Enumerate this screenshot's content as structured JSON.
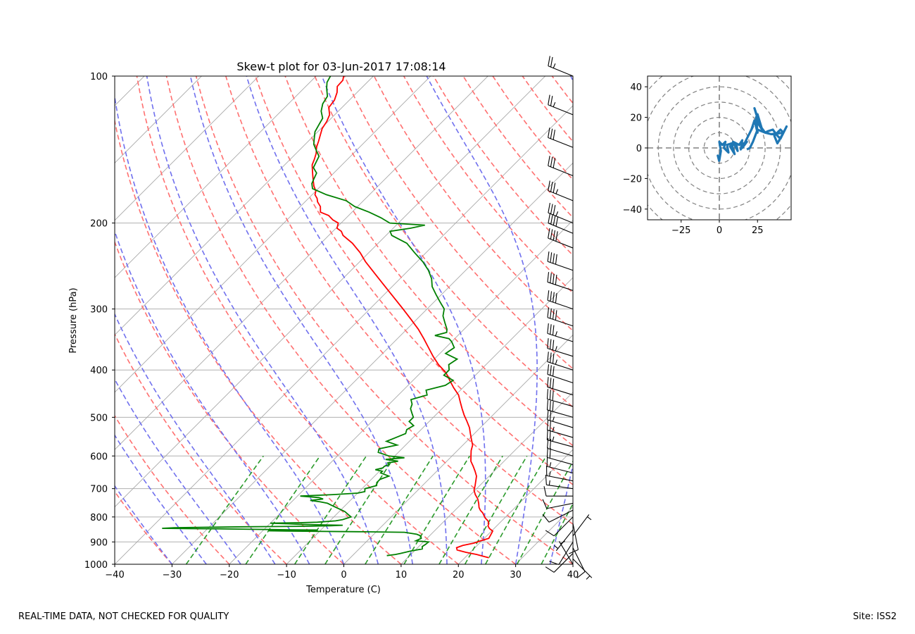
{
  "footer": {
    "left": "REAL-TIME DATA, NOT CHECKED FOR QUALITY",
    "right": "Site: ISS2"
  },
  "colors": {
    "temperature": "#ff0000",
    "dewpoint": "#008000",
    "dry_adiabats": "#ff7070",
    "moist_adiabats": "#7070ee",
    "mixing_ratio": "#2a9a2a",
    "isotherms": "#a8a8a8",
    "hodograph": "#1f77b4"
  },
  "chart_data": [
    {
      "type": "line",
      "subtype": "skew-t",
      "title": "Skew-t plot for 03-Jun-2017 17:08:14",
      "xlabel": "Temperature (C)",
      "ylabel": "Pressure (hPa)",
      "xlim": [
        -40,
        40
      ],
      "ylim": [
        1000,
        100
      ],
      "yscale": "log",
      "grid": true,
      "x_ticks": [
        -40,
        -30,
        -20,
        -10,
        0,
        10,
        20,
        30,
        40
      ],
      "x_tick_labels": [
        "−40",
        "−30",
        "−20",
        "−10",
        "0",
        "10",
        "20",
        "30",
        "40"
      ],
      "y_ticks": [
        1000,
        900,
        800,
        700,
        600,
        500,
        400,
        300,
        200,
        100
      ],
      "y_tick_labels": [
        "1000",
        "900",
        "800",
        "700",
        "600",
        "500",
        "400",
        "300",
        "200",
        "100"
      ],
      "series": [
        {
          "key": "temperature",
          "pressure": [
            970,
            965,
            955,
            945,
            935,
            925,
            915,
            905,
            895,
            885,
            875,
            865,
            855,
            845,
            835,
            825,
            815,
            805,
            795,
            785,
            775,
            765,
            750,
            735,
            720,
            705,
            690,
            675,
            660,
            645,
            630,
            615,
            600,
            585,
            570,
            555,
            540,
            525,
            510,
            495,
            480,
            465,
            450,
            435,
            420,
            405,
            390,
            375,
            360,
            345,
            330,
            315,
            300,
            285,
            270,
            255,
            240,
            230,
            220,
            212,
            208,
            205,
            200,
            197,
            193,
            190,
            185,
            181,
            178,
            175,
            172,
            168,
            164,
            160,
            156,
            152,
            148,
            144,
            140,
            136,
            132,
            128,
            124,
            120,
            116,
            112,
            108,
            105,
            102,
            100
          ],
          "temperature": [
            24.2,
            23.3,
            21.5,
            19.2,
            17.3,
            16.8,
            17.5,
            19.0,
            19.8,
            20.8,
            20.6,
            20.4,
            20.2,
            19.2,
            18.5,
            18.2,
            17.6,
            16.7,
            16.0,
            15.3,
            14.4,
            13.7,
            12.9,
            12.0,
            10.8,
            9.8,
            9.2,
            8.5,
            7.8,
            6.7,
            5.5,
            4.2,
            3.3,
            2.4,
            1.7,
            0.5,
            -0.7,
            -1.9,
            -3.4,
            -5.0,
            -6.5,
            -8.0,
            -9.5,
            -11.6,
            -13.6,
            -15.6,
            -18.3,
            -20.7,
            -23.0,
            -25.4,
            -28.0,
            -31.0,
            -34.2,
            -37.6,
            -41.2,
            -45.0,
            -49.0,
            -51.5,
            -54.5,
            -57.5,
            -58.5,
            -59.8,
            -60.5,
            -62.0,
            -63.5,
            -65.5,
            -66.5,
            -67.8,
            -68.5,
            -69.5,
            -70.0,
            -71.2,
            -72.2,
            -73.2,
            -74.2,
            -75.2,
            -75.8,
            -76.5,
            -77.5,
            -78.2,
            -79.0,
            -79.8,
            -80.2,
            -80.9,
            -82.3,
            -82.6,
            -83.5,
            -84.5,
            -84.6,
            -85.2
          ]
        },
        {
          "key": "dewpoint",
          "pressure": [
            960,
            955,
            950,
            940,
            930,
            920,
            910,
            900,
            895,
            885,
            875,
            868,
            860,
            858,
            855,
            854,
            852,
            851,
            850,
            848,
            846,
            845,
            844,
            842,
            840,
            838,
            836,
            834,
            832,
            830,
            828,
            826,
            824,
            822,
            820,
            815,
            810,
            800,
            790,
            780,
            770,
            760,
            750,
            745,
            740,
            735,
            730,
            725,
            720,
            715,
            710,
            700,
            690,
            680,
            670,
            660,
            650,
            645,
            640,
            635,
            630,
            625,
            620,
            615,
            610,
            605,
            600,
            590,
            580,
            570,
            560,
            550,
            540,
            530,
            520,
            510,
            500,
            490,
            480,
            470,
            460,
            450,
            440,
            430,
            420,
            410,
            400,
            390,
            380,
            370,
            360,
            350,
            345,
            340,
            335,
            330,
            320,
            310,
            300,
            290,
            280,
            270,
            260,
            250,
            240,
            230,
            220,
            212,
            208,
            205,
            202,
            200,
            195,
            190,
            185,
            180,
            175,
            170,
            166,
            162,
            158,
            154,
            150,
            146,
            142,
            138,
            134,
            130,
            126,
            122,
            118,
            114,
            110,
            106,
            103,
            100
          ],
          "dewpoint": [
            6.0,
            7.3,
            8.0,
            9.3,
            11.0,
            10.6,
            10.8,
            10.9,
            8.5,
            9.0,
            8.5,
            7.5,
            5.0,
            -2.0,
            -16.0,
            -19.0,
            -12.0,
            -10.5,
            -15.0,
            -22.0,
            -28.0,
            -34.0,
            -38.0,
            -36.0,
            -31.0,
            -24.0,
            -14.0,
            -9.0,
            -7.0,
            -12.0,
            -15.0,
            -17.0,
            -20.0,
            -15.0,
            -12.0,
            -9.0,
            -8.0,
            -7.0,
            -8.0,
            -9.0,
            -10.5,
            -12.0,
            -13.5,
            -15.0,
            -17.0,
            -15.0,
            -16.0,
            -19.5,
            -14.0,
            -10.0,
            -9.0,
            -9.5,
            -8.0,
            -8.5,
            -8.5,
            -7.5,
            -9.5,
            -9.5,
            -11.0,
            -10.0,
            -10.0,
            -9.5,
            -10.0,
            -8.5,
            -11.0,
            -8.0,
            -11.0,
            -13.5,
            -14.0,
            -11.5,
            -14.0,
            -13.0,
            -12.0,
            -12.5,
            -12.0,
            -13.5,
            -13.5,
            -14.5,
            -15.5,
            -16.0,
            -17.0,
            -15.0,
            -16.0,
            -13.5,
            -13.0,
            -15.5,
            -15.5,
            -16.5,
            -16.0,
            -19.0,
            -18.5,
            -20.0,
            -21.0,
            -24.0,
            -22.5,
            -23.0,
            -24.5,
            -26.0,
            -27.0,
            -29.0,
            -31.0,
            -33.0,
            -34.5,
            -36.5,
            -39.0,
            -42.0,
            -45.0,
            -49.0,
            -50.0,
            -47.0,
            -45.0,
            -51.5,
            -54.0,
            -57.0,
            -60.5,
            -63.0,
            -67.5,
            -71.0,
            -72.0,
            -72.5,
            -73.0,
            -74.5,
            -75.0,
            -75.5,
            -77.0,
            -78.5,
            -79.5,
            -80.5,
            -81.0,
            -81.5,
            -83.0,
            -84.0,
            -84.5,
            -86.0,
            -87.0,
            -87.5
          ]
        }
      ],
      "wind_barbs": {
        "pressure": [
          1000,
          975,
          950,
          925,
          900,
          875,
          850,
          825,
          800,
          775,
          750,
          725,
          700,
          675,
          650,
          625,
          600,
          575,
          550,
          525,
          500,
          475,
          450,
          425,
          400,
          375,
          350,
          325,
          300,
          275,
          250,
          225,
          210,
          200,
          180,
          160,
          140,
          120,
          100
        ],
        "u": [
          3,
          -4,
          6,
          -5,
          5,
          -3,
          4,
          -2,
          6,
          8,
          10,
          12,
          14,
          15,
          16,
          18,
          20,
          22,
          24,
          26,
          28,
          28,
          29,
          30,
          31,
          32,
          34,
          36,
          38,
          39,
          40,
          38,
          36,
          34,
          32,
          30,
          28,
          25,
          22
        ],
        "v": [
          -5,
          4,
          6,
          10,
          8,
          -4,
          5,
          10,
          6,
          4,
          2,
          0,
          -2,
          -3,
          -4,
          -5,
          -6,
          -6,
          -7,
          -8,
          -8,
          -8,
          -9,
          -10,
          -10,
          -10,
          -11,
          -12,
          -13,
          -13,
          -14,
          -15,
          -15,
          -14,
          -13,
          -12,
          -11,
          -10,
          -9
        ]
      }
    },
    {
      "type": "line",
      "subtype": "hodograph",
      "xlim": [
        -47,
        47
      ],
      "ylim": [
        -47,
        47
      ],
      "x_ticks": [
        -25,
        0,
        25
      ],
      "x_tick_labels": [
        "−25",
        "0",
        "25"
      ],
      "y_ticks": [
        40,
        20,
        0,
        -20,
        -40
      ],
      "y_tick_labels": [
        "40",
        "20",
        "0",
        "−20",
        "−40"
      ],
      "rings": [
        10,
        20,
        30,
        40,
        50,
        60
      ],
      "u": [
        0,
        -1,
        0,
        1,
        0,
        2,
        4,
        3,
        6,
        5,
        8,
        10,
        7,
        11,
        12,
        9,
        13,
        15,
        14,
        16,
        15,
        18,
        16,
        20,
        22,
        21,
        23,
        25,
        24,
        26,
        23,
        27,
        25,
        28,
        24,
        30,
        32,
        35,
        38,
        40,
        44,
        42,
        38,
        36,
        40,
        42,
        34,
        30,
        25,
        22,
        20,
        18
      ],
      "v": [
        -9,
        -5,
        -8,
        -2,
        4,
        2,
        4,
        0,
        -3,
        2,
        3,
        -4,
        1,
        3,
        -2,
        4,
        2,
        5,
        -1,
        3,
        0,
        4,
        2,
        10,
        14,
        12,
        18,
        10,
        20,
        16,
        26,
        14,
        22,
        12,
        18,
        10,
        11,
        12,
        8,
        6,
        14,
        10,
        3,
        8,
        12,
        10,
        9,
        10,
        12,
        4,
        0,
        -1
      ]
    }
  ]
}
